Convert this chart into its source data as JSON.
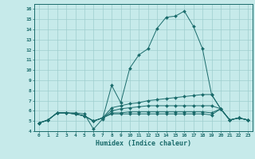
{
  "xlabel": "Humidex (Indice chaleur)",
  "xlim": [
    -0.5,
    23.5
  ],
  "ylim": [
    4,
    16.5
  ],
  "xticks": [
    0,
    1,
    2,
    3,
    4,
    5,
    6,
    7,
    8,
    9,
    10,
    11,
    12,
    13,
    14,
    15,
    16,
    17,
    18,
    19,
    20,
    21,
    22,
    23
  ],
  "yticks": [
    4,
    5,
    6,
    7,
    8,
    9,
    10,
    11,
    12,
    13,
    14,
    15,
    16
  ],
  "background_color": "#c6eaea",
  "grid_color": "#9ecece",
  "line_color": "#1a6b6b",
  "series": [
    [
      4.8,
      5.1,
      5.8,
      5.8,
      5.8,
      5.7,
      4.2,
      5.2,
      8.5,
      6.8,
      10.2,
      11.5,
      12.1,
      14.1,
      15.2,
      15.3,
      15.8,
      14.3,
      12.1,
      7.6,
      6.2,
      5.1,
      5.3,
      5.1
    ],
    [
      4.8,
      5.1,
      5.8,
      5.8,
      5.7,
      5.5,
      5.0,
      5.3,
      6.3,
      6.5,
      6.7,
      6.8,
      7.0,
      7.1,
      7.2,
      7.3,
      7.4,
      7.5,
      7.6,
      7.6,
      6.2,
      5.1,
      5.3,
      5.1
    ],
    [
      4.8,
      5.1,
      5.8,
      5.8,
      5.7,
      5.5,
      5.0,
      5.3,
      6.0,
      6.2,
      6.3,
      6.4,
      6.5,
      6.5,
      6.5,
      6.5,
      6.5,
      6.5,
      6.5,
      6.5,
      6.2,
      5.1,
      5.3,
      5.1
    ],
    [
      4.8,
      5.1,
      5.8,
      5.8,
      5.7,
      5.5,
      5.0,
      5.3,
      5.8,
      5.8,
      5.9,
      5.9,
      5.9,
      5.9,
      5.9,
      5.9,
      5.9,
      5.9,
      5.9,
      5.8,
      6.2,
      5.1,
      5.3,
      5.1
    ],
    [
      4.8,
      5.1,
      5.8,
      5.8,
      5.7,
      5.5,
      5.0,
      5.3,
      5.7,
      5.7,
      5.7,
      5.7,
      5.7,
      5.7,
      5.7,
      5.7,
      5.7,
      5.7,
      5.7,
      5.6,
      6.2,
      5.1,
      5.3,
      5.1
    ]
  ]
}
